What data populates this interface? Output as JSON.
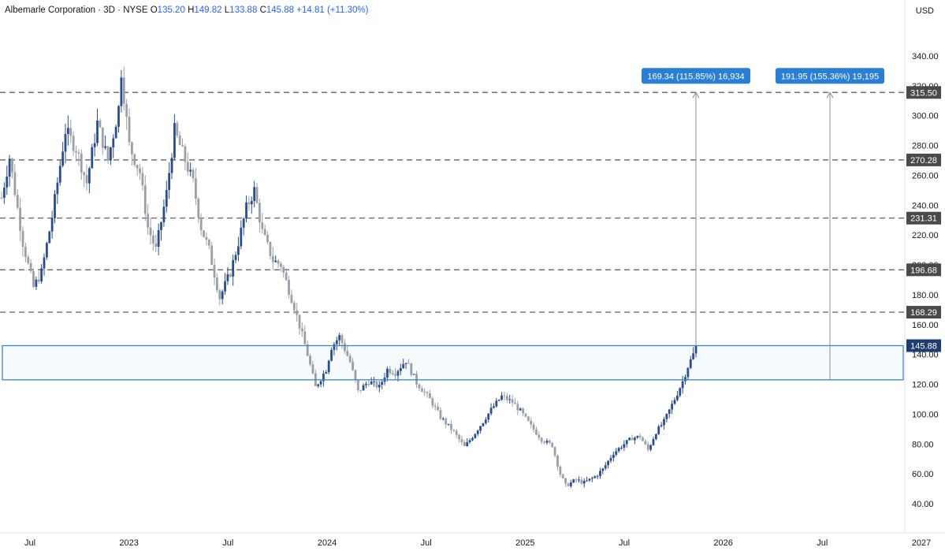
{
  "legend": {
    "symbol": "Albemarle Corporation · 3D · NYSE",
    "o_label": "O",
    "o": "135.20",
    "h_label": "H",
    "h": "149.82",
    "l_label": "L",
    "l": "133.88",
    "c_label": "C",
    "c": "145.88",
    "change": "+14.81 (+11.30%)"
  },
  "currency": "USD",
  "colors": {
    "up": "#2a4e8c",
    "down": "#9aa0a8",
    "box": "#3a86c8",
    "label_bg": "#2a7fd4",
    "dash": "#555555",
    "price_badge": "#4a4a4a"
  },
  "chart_data": {
    "type": "candlestick",
    "ylim": [
      25,
      345
    ],
    "y_ticks": [
      "40.00",
      "60.00",
      "80.00",
      "100.00",
      "120.00",
      "140.00",
      "160.00",
      "180.00",
      "200.00",
      "220.00",
      "240.00",
      "260.00",
      "280.00",
      "300.00",
      "320.00",
      "340.00"
    ],
    "x_ticks": [
      "Jul",
      "2023",
      "Jul",
      "2024",
      "Jul",
      "2025",
      "Jul",
      "2026",
      "Jul",
      "2027"
    ],
    "horizontal_levels": [
      "315.50",
      "270.28",
      "231.31",
      "196.68",
      "168.29"
    ],
    "current_price": "145.88",
    "zone": {
      "top": 145.88,
      "bottom": 123.0
    },
    "projections": [
      {
        "label": "169.34 (115.85%) 16,934",
        "from": 145.88,
        "to": 315.5
      },
      {
        "label": "191.95 (155.36%) 19,195",
        "from": 123.5,
        "to": 315.5
      }
    ],
    "price_path": [
      [
        0,
        245
      ],
      [
        3,
        272
      ],
      [
        8,
        215
      ],
      [
        12,
        185
      ],
      [
        15,
        195
      ],
      [
        19,
        232
      ],
      [
        24,
        290
      ],
      [
        28,
        278
      ],
      [
        32,
        255
      ],
      [
        36,
        295
      ],
      [
        40,
        270
      ],
      [
        44,
        305
      ],
      [
        45,
        330
      ],
      [
        48,
        280
      ],
      [
        52,
        262
      ],
      [
        55,
        225
      ],
      [
        58,
        210
      ],
      [
        62,
        248
      ],
      [
        65,
        290
      ],
      [
        68,
        275
      ],
      [
        72,
        255
      ],
      [
        75,
        225
      ],
      [
        78,
        210
      ],
      [
        82,
        178
      ],
      [
        86,
        195
      ],
      [
        89,
        215
      ],
      [
        92,
        238
      ],
      [
        95,
        250
      ],
      [
        98,
        222
      ],
      [
        102,
        203
      ],
      [
        105,
        200
      ],
      [
        110,
        172
      ],
      [
        115,
        140
      ],
      [
        118,
        118
      ],
      [
        122,
        130
      ],
      [
        124,
        145
      ],
      [
        127,
        152
      ],
      [
        131,
        135
      ],
      [
        134,
        115
      ],
      [
        138,
        122
      ],
      [
        142,
        118
      ],
      [
        145,
        130
      ],
      [
        148,
        128
      ],
      [
        152,
        136
      ],
      [
        156,
        121
      ],
      [
        161,
        110
      ],
      [
        165,
        98
      ],
      [
        170,
        88
      ],
      [
        174,
        78
      ],
      [
        177,
        85
      ],
      [
        181,
        95
      ],
      [
        184,
        103
      ],
      [
        188,
        112
      ],
      [
        192,
        108
      ],
      [
        195,
        102
      ],
      [
        199,
        92
      ],
      [
        203,
        83
      ],
      [
        207,
        79
      ],
      [
        210,
        60
      ],
      [
        212,
        52
      ],
      [
        216,
        56
      ],
      [
        219,
        54
      ],
      [
        223,
        58
      ],
      [
        226,
        63
      ],
      [
        230,
        74
      ],
      [
        234,
        80
      ],
      [
        237,
        84
      ],
      [
        240,
        85
      ],
      [
        243,
        76
      ],
      [
        246,
        88
      ],
      [
        249,
        95
      ],
      [
        253,
        110
      ],
      [
        256,
        122
      ],
      [
        258,
        132
      ],
      [
        260,
        140
      ],
      [
        261,
        146
      ]
    ]
  }
}
